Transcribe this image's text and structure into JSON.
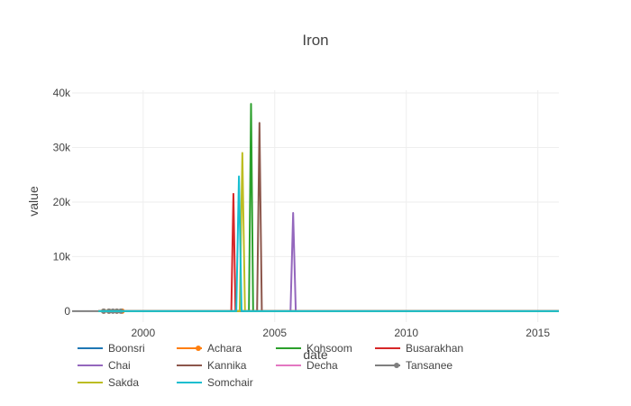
{
  "chart_data": {
    "type": "line",
    "title": "Iron",
    "xlabel": "date",
    "ylabel": "value",
    "x_axis": {
      "range": [
        1997.3,
        2015.8
      ],
      "ticks": [
        {
          "value": 2000,
          "label": "2000"
        },
        {
          "value": 2005,
          "label": "2005"
        },
        {
          "value": 2010,
          "label": "2010"
        },
        {
          "value": 2015,
          "label": "2015"
        }
      ]
    },
    "y_axis": {
      "range": [
        -2000,
        40500
      ],
      "ticks": [
        {
          "value": 0,
          "label": "0"
        },
        {
          "value": 10000,
          "label": "10k"
        },
        {
          "value": 20000,
          "label": "20k"
        },
        {
          "value": 30000,
          "label": "30k"
        },
        {
          "value": 40000,
          "label": "40k"
        }
      ]
    },
    "grid": true,
    "legend_position": "bottom",
    "series": [
      {
        "name": "Boonsri",
        "color": "#1f77b4",
        "markers": false,
        "points": [
          [
            1998.3,
            0
          ],
          [
            2015.8,
            0
          ]
        ]
      },
      {
        "name": "Achara",
        "color": "#ff7f0e",
        "markers": true,
        "points": [
          [
            1998.3,
            0
          ],
          [
            1998.5,
            0
          ],
          [
            1998.7,
            0
          ],
          [
            1999.0,
            0
          ],
          [
            1999.2,
            0
          ],
          [
            2015.8,
            0
          ]
        ]
      },
      {
        "name": "Kohsoom",
        "color": "#2ca02c",
        "markers": false,
        "points": [
          [
            1998.3,
            0
          ],
          [
            2004.02,
            0
          ],
          [
            2004.1,
            38000
          ],
          [
            2004.18,
            0
          ],
          [
            2015.8,
            0
          ]
        ]
      },
      {
        "name": "Busarakhan",
        "color": "#d62728",
        "markers": false,
        "points": [
          [
            1998.3,
            0
          ],
          [
            2003.35,
            0
          ],
          [
            2003.43,
            21500
          ],
          [
            2003.51,
            0
          ],
          [
            2015.8,
            0
          ]
        ]
      },
      {
        "name": "Chai",
        "color": "#9467bd",
        "markers": false,
        "points": [
          [
            1998.3,
            0
          ],
          [
            2005.6,
            0
          ],
          [
            2005.7,
            18000
          ],
          [
            2005.8,
            0
          ],
          [
            2015.8,
            0
          ]
        ]
      },
      {
        "name": "Kannika",
        "color": "#8c564b",
        "markers": false,
        "points": [
          [
            1998.3,
            0
          ],
          [
            2004.33,
            0
          ],
          [
            2004.42,
            34500
          ],
          [
            2004.51,
            0
          ],
          [
            2015.8,
            0
          ]
        ]
      },
      {
        "name": "Decha",
        "color": "#e377c2",
        "markers": false,
        "points": [
          [
            1998.3,
            0
          ],
          [
            2015.8,
            0
          ]
        ]
      },
      {
        "name": "Tansanee",
        "color": "#7f7f7f",
        "markers": true,
        "points": [
          [
            1997.3,
            0
          ],
          [
            1998.5,
            0
          ],
          [
            1998.7,
            0
          ],
          [
            1998.85,
            0
          ],
          [
            1999.0,
            0
          ],
          [
            1999.15,
            0
          ],
          [
            2015.8,
            0
          ]
        ]
      },
      {
        "name": "Sakda",
        "color": "#bcbd22",
        "markers": false,
        "points": [
          [
            1998.3,
            0
          ],
          [
            2003.67,
            0
          ],
          [
            2003.77,
            29000
          ],
          [
            2003.87,
            0
          ],
          [
            2015.8,
            0
          ]
        ]
      },
      {
        "name": "Somchair",
        "color": "#17becf",
        "markers": false,
        "points": [
          [
            1998.3,
            0
          ],
          [
            2003.54,
            0
          ],
          [
            2003.64,
            24700
          ],
          [
            2003.74,
            0
          ],
          [
            2015.8,
            0
          ]
        ]
      }
    ]
  }
}
